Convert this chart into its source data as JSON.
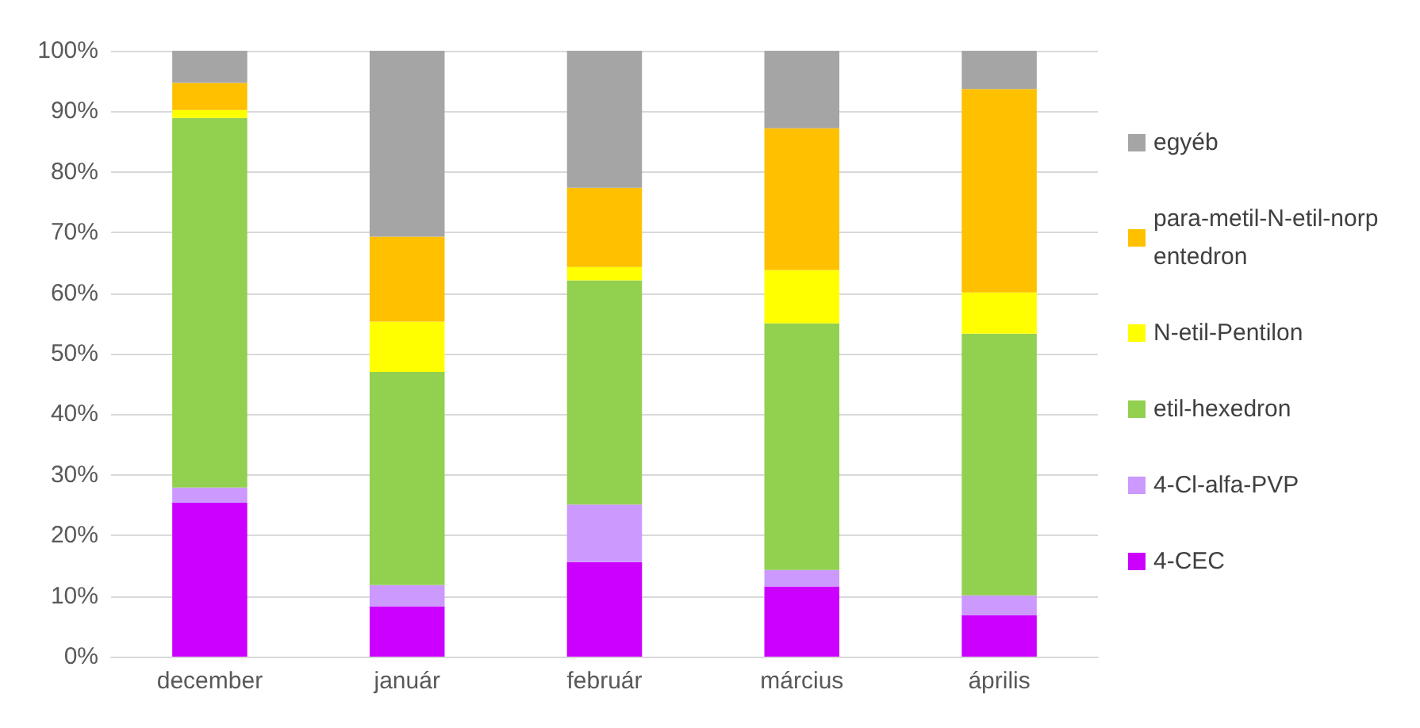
{
  "chart_data": {
    "type": "bar",
    "stacked": true,
    "categories": [
      "december",
      "január",
      "február",
      "március",
      "április"
    ],
    "series": [
      {
        "name": "4-CEC",
        "color": "#cc00ff",
        "values": [
          25.4,
          8.3,
          15.6,
          11.6,
          6.8
        ]
      },
      {
        "name": "4-Cl-alfa-PVP",
        "color": "#cc99ff",
        "values": [
          2.5,
          3.5,
          9.5,
          2.7,
          3.3
        ]
      },
      {
        "name": "etil-hexedron",
        "color": "#92d050",
        "values": [
          61.0,
          35.2,
          37.0,
          40.7,
          43.2
        ]
      },
      {
        "name": "N-etil-Pentilon",
        "color": "#ffff00",
        "values": [
          1.3,
          8.3,
          2.2,
          8.8,
          6.8
        ]
      },
      {
        "name": "para-metil-N-etil-norpentedron",
        "color": "#ffc000",
        "values": [
          4.5,
          14.0,
          13.1,
          23.4,
          33.6
        ]
      },
      {
        "name": "egyéb",
        "color": "#a5a5a5",
        "values": [
          5.3,
          30.7,
          22.6,
          12.8,
          6.3
        ]
      }
    ],
    "ylim": [
      0,
      100
    ],
    "yticks": [
      {
        "value": 0,
        "label": "0%"
      },
      {
        "value": 10,
        "label": "10%"
      },
      {
        "value": 20,
        "label": "20%"
      },
      {
        "value": 30,
        "label": "30%"
      },
      {
        "value": 40,
        "label": "40%"
      },
      {
        "value": 50,
        "label": "50%"
      },
      {
        "value": 60,
        "label": "60%"
      },
      {
        "value": 70,
        "label": "70%"
      },
      {
        "value": 80,
        "label": "80%"
      },
      {
        "value": 90,
        "label": "90%"
      },
      {
        "value": 100,
        "label": "100%"
      }
    ],
    "grid": "y",
    "legend": "right"
  }
}
